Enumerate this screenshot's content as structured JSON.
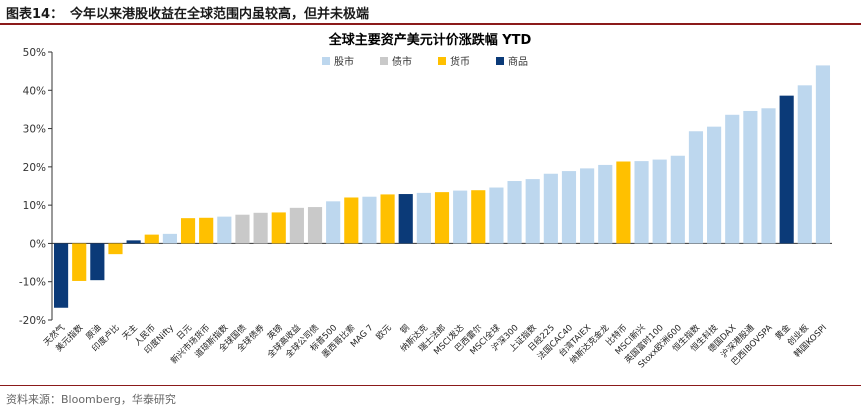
{
  "header": {
    "figure_label": "图表14：",
    "title": "今年以来港股收益在全球范围内虽较高，但并未极端"
  },
  "footer": {
    "source": "资料来源：Bloomberg，华泰研究"
  },
  "colors": {
    "stock": "#bdd7ee",
    "bond": "#c9c9c9",
    "currency": "#ffc000",
    "commodity": "#0b3a78"
  },
  "chart_data": {
    "type": "bar",
    "title": "全球主要资产美元计价涨跌幅 YTD",
    "ylim": [
      -20,
      50
    ],
    "yticks": [
      "-20%",
      "-10%",
      "0%",
      "10%",
      "20%",
      "30%",
      "40%",
      "50%"
    ],
    "ytick_values": [
      -20,
      -10,
      0,
      10,
      20,
      30,
      40,
      50
    ],
    "grid": false,
    "legend_position": "top-center",
    "legend": [
      {
        "key": "stock",
        "label": "股市"
      },
      {
        "key": "bond",
        "label": "债市"
      },
      {
        "key": "currency",
        "label": "货币"
      },
      {
        "key": "commodity",
        "label": "商品"
      }
    ],
    "categories": [
      "天然气",
      "美元指数",
      "原油",
      "印度卢比",
      "天主",
      "人民币",
      "印度Nifty",
      "日元",
      "新兴市场货币",
      "道琼斯指数",
      "全球国债",
      "全球债券",
      "英镑",
      "全球高收益",
      "全球公司债",
      "标普500",
      "墨西哥比索",
      "MAG 7",
      "欧元",
      "铜",
      "纳斯达克",
      "瑞士法郎",
      "MSCI发达",
      "巴西雷尔",
      "MSCI全球",
      "沪深300",
      "上证指数",
      "日经225",
      "法国CAC40",
      "台湾TAIEX",
      "纳斯达克金龙",
      "比特币",
      "MSCI新兴",
      "英国富时100",
      "Stoxx欧洲600",
      "恒生指数",
      "恒生科技",
      "德国DAX",
      "沪深港股通",
      "巴西IBOVSPA",
      "黄金",
      "创业板",
      "韩国KOSPI"
    ],
    "types": [
      "commodity",
      "currency",
      "commodity",
      "currency",
      "commodity",
      "currency",
      "stock",
      "currency",
      "currency",
      "stock",
      "bond",
      "bond",
      "currency",
      "bond",
      "bond",
      "stock",
      "currency",
      "stock",
      "currency",
      "commodity",
      "stock",
      "currency",
      "stock",
      "currency",
      "stock",
      "stock",
      "stock",
      "stock",
      "stock",
      "stock",
      "stock",
      "currency",
      "stock",
      "stock",
      "stock",
      "stock",
      "stock",
      "stock",
      "stock",
      "stock",
      "commodity",
      "stock",
      "stock"
    ],
    "values": [
      -16.8,
      -9.8,
      -9.6,
      -2.8,
      0.8,
      2.3,
      2.5,
      6.6,
      6.7,
      7.0,
      7.5,
      8.0,
      8.1,
      9.3,
      9.5,
      11.0,
      12.0,
      12.2,
      12.8,
      12.9,
      13.2,
      13.4,
      13.8,
      13.9,
      14.6,
      16.3,
      16.8,
      18.2,
      18.9,
      19.6,
      20.5,
      21.4,
      21.5,
      21.9,
      22.9,
      29.3,
      30.5,
      33.6,
      34.6,
      35.3,
      38.6,
      41.3,
      46.5
    ]
  }
}
